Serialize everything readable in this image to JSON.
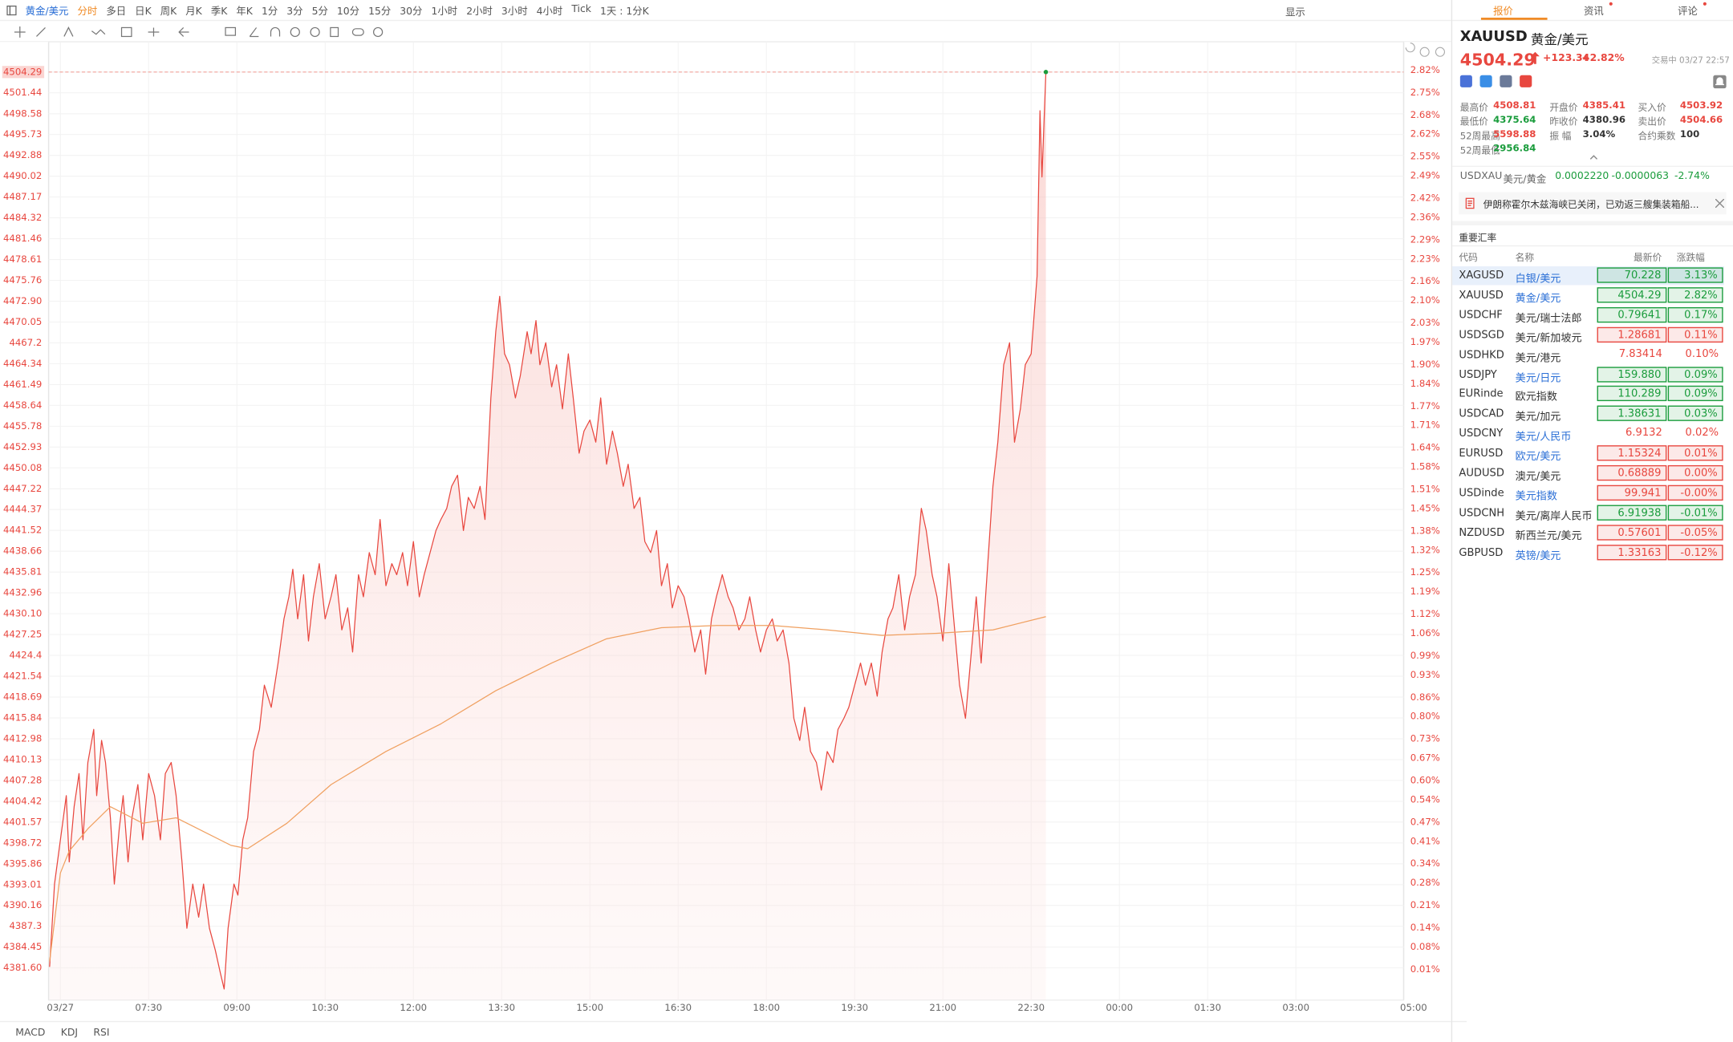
{
  "toolbar": {
    "symbol": "黄金/美元",
    "periods": [
      "分时",
      "多日",
      "日K",
      "周K",
      "月K",
      "季K",
      "年K",
      "1分",
      "3分",
      "5分",
      "10分",
      "15分",
      "30分",
      "1小时",
      "2小时",
      "3小时",
      "4小时",
      "Tick",
      "1天 : 1分K"
    ],
    "display": "显示"
  },
  "indicators": [
    "MACD",
    "KDJ",
    "RSI"
  ],
  "chart_data": {
    "type": "line",
    "x": [
      -11,
      -6,
      0,
      6,
      9,
      14,
      19,
      23,
      28,
      34,
      37,
      42,
      46,
      51,
      55,
      60,
      64,
      69,
      73,
      79,
      84,
      90,
      96,
      102,
      107,
      113,
      118,
      124,
      129,
      135,
      141,
      146,
      152,
      158,
      163,
      167,
      171,
      177,
      181,
      186,
      191,
      197,
      203,
      208,
      215,
      222,
      228,
      233,
      237,
      242,
      248,
      253,
      258,
      264,
      270,
      276,
      281,
      287,
      293,
      298,
      304,
      309,
      315,
      321,
      326,
      332,
      338,
      343,
      349,
      354,
      360,
      366,
      371,
      377,
      383,
      388,
      394,
      399,
      405,
      411,
      416,
      422,
      428,
      433,
      439,
      444,
      448,
      453,
      458,
      464,
      469,
      476,
      480,
      485,
      489,
      495,
      501,
      506,
      512,
      518,
      523,
      529,
      534,
      540,
      546,
      551,
      557,
      563,
      568,
      574,
      579,
      585,
      591,
      596,
      602,
      608,
      613,
      619,
      624,
      630,
      636,
      641,
      647,
      653,
      658,
      664,
      669,
      675,
      681,
      686,
      692,
      698,
      703,
      709,
      714,
      720,
      726,
      731,
      737,
      743,
      748,
      754,
      759,
      765,
      771,
      776,
      782,
      788,
      793,
      799,
      804,
      810,
      816,
      821,
      827,
      833,
      838,
      844,
      849,
      855,
      861,
      866,
      872,
      878,
      883,
      889,
      894,
      900,
      906,
      911,
      917,
      923,
      928,
      934,
      939,
      945,
      951,
      956,
      962,
      968,
      973,
      979,
      984,
      990,
      996,
      999,
      1001,
      1005
    ],
    "series": [
      {
        "color": "#e8473f",
        "values": [
          4381.74,
          4393.08,
          4399.14,
          4405.19,
          4396.11,
          4403.68,
          4408.22,
          4399.14,
          4409.73,
          4414.27,
          4405.19,
          4412.76,
          4409.73,
          4402.16,
          4393.08,
          4400.65,
          4405.19,
          4396.11,
          4402.16,
          4406.7,
          4399.14,
          4408.22,
          4405.19,
          4399.14,
          4408.22,
          4409.73,
          4405.19,
          4396.11,
          4387.03,
          4393.08,
          4388.55,
          4393.08,
          4387.03,
          4384.01,
          4380.98,
          4378.71,
          4387.03,
          4393.08,
          4391.57,
          4399.14,
          4402.16,
          4411.24,
          4414.27,
          4420.32,
          4417.29,
          4423.35,
          4429.4,
          4432.42,
          4436.2,
          4429.4,
          4435.45,
          4426.37,
          4432.42,
          4436.96,
          4429.4,
          4432.42,
          4435.45,
          4427.89,
          4430.91,
          4424.86,
          4435.45,
          4432.42,
          4438.48,
          4435.45,
          4443.01,
          4433.94,
          4436.96,
          4435.45,
          4438.48,
          4433.94,
          4439.99,
          4432.42,
          4435.45,
          4438.48,
          4441.5,
          4443.01,
          4444.53,
          4447.55,
          4449.07,
          4441.5,
          4446.04,
          4444.53,
          4447.55,
          4443.01,
          4459.66,
          4468.73,
          4473.58,
          4465.7,
          4464.2,
          4459.66,
          4462.68,
          4468.73,
          4465.7,
          4470.25,
          4464.2,
          4467.22,
          4461.17,
          4464.2,
          4458.15,
          4465.7,
          4459.66,
          4452.09,
          4455.12,
          4456.63,
          4453.6,
          4459.66,
          4450.58,
          4455.12,
          4452.09,
          4447.55,
          4450.58,
          4444.53,
          4446.04,
          4439.99,
          4438.48,
          4441.5,
          4433.94,
          4436.96,
          4430.91,
          4433.94,
          4432.42,
          4429.4,
          4424.86,
          4427.89,
          4421.83,
          4429.4,
          4432.42,
          4435.45,
          4432.42,
          4430.91,
          4427.89,
          4429.4,
          4432.42,
          4427.89,
          4424.86,
          4427.89,
          4429.4,
          4426.37,
          4427.89,
          4423.35,
          4415.78,
          4412.76,
          4417.29,
          4411.24,
          4409.73,
          4405.95,
          4411.24,
          4409.73,
          4414.27,
          4415.78,
          4417.29,
          4420.32,
          4423.35,
          4420.32,
          4423.35,
          4418.81,
          4424.86,
          4429.4,
          4430.91,
          4435.45,
          4427.89,
          4432.42,
          4435.45,
          4444.53,
          4441.5,
          4435.45,
          4432.42,
          4426.37,
          4436.96,
          4429.4,
          4420.32,
          4415.78,
          4423.35,
          4432.42,
          4423.35,
          4435.45,
          4447.55,
          4453.6,
          4464.2,
          4467.22,
          4453.6,
          4458.15,
          4464.2,
          4465.7,
          4476.3,
          4498.99,
          4489.92,
          4504.29
        ]
      },
      {
        "color": "#f0a060",
        "x": [
          -11,
          0,
          9,
          28,
          51,
          84,
          118,
          174,
          191,
          231,
          276,
          332,
          388,
          444,
          501,
          557,
          613,
          669,
          726,
          782,
          838,
          894,
          951,
          1005
        ],
        "values": [
          4382.49,
          4394.6,
          4397.62,
          4400.65,
          4403.68,
          4401.41,
          4402.16,
          4398.38,
          4397.93,
          4401.41,
          4406.7,
          4411.24,
          4415.02,
          4419.56,
          4423.35,
          4426.67,
          4428.19,
          4428.49,
          4428.49,
          4427.89,
          4427.13,
          4427.43,
          4427.89,
          4429.7
        ]
      }
    ],
    "xlim": [
      -12,
      1380
    ],
    "xticks": [
      {
        "value": 0,
        "label": "03/27"
      },
      {
        "value": 90,
        "label": "07:30"
      },
      {
        "value": 180,
        "label": "09:00"
      },
      {
        "value": 270,
        "label": "10:30"
      },
      {
        "value": 360,
        "label": "12:00"
      },
      {
        "value": 450,
        "label": "13:30"
      },
      {
        "value": 540,
        "label": "15:00"
      },
      {
        "value": 630,
        "label": "16:30"
      },
      {
        "value": 720,
        "label": "18:00"
      },
      {
        "value": 810,
        "label": "19:30"
      },
      {
        "value": 900,
        "label": "21:00"
      },
      {
        "value": 990,
        "label": "22:30"
      },
      {
        "value": 1080,
        "label": "00:00"
      },
      {
        "value": 1170,
        "label": "01:30"
      },
      {
        "value": 1260,
        "label": "03:00"
      },
      {
        "value": 1380,
        "label": "05:00"
      }
    ],
    "ylim": [
      4377.2,
      4508.1
    ],
    "yticks": [
      4504.29,
      4501.44,
      4498.58,
      4495.73,
      4492.88,
      4490.02,
      4487.17,
      4484.32,
      4481.46,
      4478.61,
      4475.76,
      {
        "value": 4472.9,
        "label": "4472.90"
      },
      4470.05,
      4467.2,
      4464.34,
      4461.49,
      4458.64,
      4455.78,
      4452.93,
      4450.08,
      4447.22,
      4444.37,
      4441.52,
      4438.66,
      4435.81,
      4432.96,
      {
        "value": 4430.1,
        "label": "4430.10"
      },
      4427.25,
      4424.4,
      4421.54,
      4418.69,
      4415.84,
      4412.98,
      4410.13,
      4407.28,
      4404.42,
      4401.57,
      4398.72,
      4395.86,
      4393.01,
      4390.16,
      4387.3,
      4384.45,
      {
        "value": 4381.6,
        "label": "4381.60"
      }
    ],
    "y2lim": [
      -0.086,
      2.901
    ],
    "y2ticks": [
      {
        "value": 2.82,
        "label": "2.82%"
      },
      {
        "value": 2.75,
        "label": "2.75%"
      },
      {
        "value": 2.68,
        "label": "2.68%"
      },
      {
        "value": 2.62,
        "label": "2.62%"
      },
      {
        "value": 2.55,
        "label": "2.55%"
      },
      {
        "value": 2.49,
        "label": "2.49%"
      },
      {
        "value": 2.42,
        "label": "2.42%"
      },
      {
        "value": 2.36,
        "label": "2.36%"
      },
      {
        "value": 2.29,
        "label": "2.29%"
      },
      {
        "value": 2.23,
        "label": "2.23%"
      },
      {
        "value": 2.16,
        "label": "2.16%"
      },
      {
        "value": 2.1,
        "label": "2.10%"
      },
      {
        "value": 2.03,
        "label": "2.03%"
      },
      {
        "value": 1.97,
        "label": "1.97%"
      },
      {
        "value": 1.9,
        "label": "1.90%"
      },
      {
        "value": 1.84,
        "label": "1.84%"
      },
      {
        "value": 1.77,
        "label": "1.77%"
      },
      {
        "value": 1.71,
        "label": "1.71%"
      },
      {
        "value": 1.64,
        "label": "1.64%"
      },
      {
        "value": 1.58,
        "label": "1.58%"
      },
      {
        "value": 1.51,
        "label": "1.51%"
      },
      {
        "value": 1.45,
        "label": "1.45%"
      },
      {
        "value": 1.38,
        "label": "1.38%"
      },
      {
        "value": 1.32,
        "label": "1.32%"
      },
      {
        "value": 1.25,
        "label": "1.25%"
      },
      {
        "value": 1.19,
        "label": "1.19%"
      },
      {
        "value": 1.12,
        "label": "1.12%"
      },
      {
        "value": 1.06,
        "label": "1.06%"
      },
      {
        "value": 0.99,
        "label": "0.99%"
      },
      {
        "value": 0.93,
        "label": "0.93%"
      },
      {
        "value": 0.86,
        "label": "0.86%"
      },
      {
        "value": 0.8,
        "label": "0.80%"
      },
      {
        "value": 0.73,
        "label": "0.73%"
      },
      {
        "value": 0.67,
        "label": "0.67%"
      },
      {
        "value": 0.6,
        "label": "0.60%"
      },
      {
        "value": 0.54,
        "label": "0.54%"
      },
      {
        "value": 0.47,
        "label": "0.47%"
      },
      {
        "value": 0.41,
        "label": "0.41%"
      },
      {
        "value": 0.34,
        "label": "0.34%"
      },
      {
        "value": 0.28,
        "label": "0.28%"
      },
      {
        "value": 0.21,
        "label": "0.21%"
      },
      {
        "value": 0.14,
        "label": "0.14%"
      },
      {
        "value": 0.08,
        "label": "0.08%"
      },
      {
        "value": 0.01,
        "label": "0.01%"
      }
    ],
    "grid": true
  },
  "panel": {
    "tabs": [
      "报价",
      "资讯",
      "评论"
    ],
    "code": "XAUUSD",
    "name": "黄金/美元",
    "price": "4504.29",
    "change": "+123.34",
    "change_pct": "+2.82%",
    "status": "交易中 03/27 22:57",
    "stats": [
      {
        "label": "最高价",
        "value": "4508.81",
        "color": "#e8473f"
      },
      {
        "label": "开盘价",
        "value": "4385.41",
        "color": "#e8473f"
      },
      {
        "label": "买入价",
        "value": "4503.92",
        "color": "#e8473f"
      },
      {
        "label": "最低价",
        "value": "4375.64",
        "color": "#1a9c3c"
      },
      {
        "label": "昨收价",
        "value": "4380.96",
        "color": "#333333"
      },
      {
        "label": "卖出价",
        "value": "4504.66",
        "color": "#e8473f"
      },
      {
        "label": "52周最高",
        "value": "5598.88",
        "color": "#e8473f"
      },
      {
        "label": "振 幅",
        "value": "3.04%",
        "color": "#333333"
      },
      {
        "label": "合约乘数",
        "value": "100",
        "color": "#333333"
      },
      {
        "label": "52周最低",
        "value": "2956.84",
        "color": "#1a9c3c"
      }
    ],
    "related": {
      "code": "USDXAU",
      "name": "美元/黄金",
      "price": "0.0002220",
      "change": "-0.0000063",
      "change_pct": "-2.74%"
    },
    "news": "伊朗称霍尔木兹海峡已关闭，已劝返三艘集装箱船...",
    "section": "重要汇率",
    "table": {
      "headers": [
        "代码",
        "名称",
        "最新价",
        "涨跌幅"
      ],
      "rows": [
        {
          "code": "XAGUSD",
          "name": "白银/美元",
          "price": "70.228",
          "change": "3.13%",
          "color": "#1a9c3c",
          "boxed": true,
          "link": true
        },
        {
          "code": "XAUUSD",
          "name": "黄金/美元",
          "price": "4504.29",
          "change": "2.82%",
          "color": "#1a9c3c",
          "boxed": true,
          "link": true
        },
        {
          "code": "USDCHF",
          "name": "美元/瑞士法郎",
          "price": "0.79641",
          "change": "0.17%",
          "color": "#1a9c3c",
          "boxed": true,
          "link": false
        },
        {
          "code": "USDSGD",
          "name": "美元/新加坡元",
          "price": "1.28681",
          "change": "0.11%",
          "color": "#e8473f",
          "boxed": true,
          "link": false
        },
        {
          "code": "USDHKD",
          "name": "美元/港元",
          "price": "7.83414",
          "change": "0.10%",
          "color": "#e8473f",
          "boxed": false,
          "link": false
        },
        {
          "code": "USDJPY",
          "name": "美元/日元",
          "price": "159.880",
          "change": "0.09%",
          "color": "#1a9c3c",
          "boxed": true,
          "link": true
        },
        {
          "code": "EURinde",
          "name": "欧元指数",
          "price": "110.289",
          "change": "0.09%",
          "color": "#1a9c3c",
          "boxed": true,
          "link": false
        },
        {
          "code": "USDCAD",
          "name": "美元/加元",
          "price": "1.38631",
          "change": "0.03%",
          "color": "#1a9c3c",
          "boxed": true,
          "link": false
        },
        {
          "code": "USDCNY",
          "name": "美元/人民币",
          "price": "6.9132",
          "change": "0.02%",
          "color": "#e8473f",
          "boxed": false,
          "link": true
        },
        {
          "code": "EURUSD",
          "name": "欧元/美元",
          "price": "1.15324",
          "change": "0.01%",
          "color": "#e8473f",
          "boxed": true,
          "link": true
        },
        {
          "code": "AUDUSD",
          "name": "澳元/美元",
          "price": "0.68889",
          "change": "0.00%",
          "color": "#e8473f",
          "boxed": true,
          "link": false
        },
        {
          "code": "USDinde",
          "name": "美元指数",
          "price": "99.941",
          "change": "-0.00%",
          "color": "#e8473f",
          "boxed": true,
          "link": true
        },
        {
          "code": "USDCNH",
          "name": "美元/离岸人民币",
          "price": "6.91938",
          "change": "-0.01%",
          "color": "#1a9c3c",
          "boxed": true,
          "link": false
        },
        {
          "code": "NZDUSD",
          "name": "新西兰元/美元",
          "price": "0.57601",
          "change": "-0.05%",
          "color": "#e8473f",
          "boxed": true,
          "link": false
        },
        {
          "code": "GBPUSD",
          "name": "英镑/美元",
          "price": "1.33163",
          "change": "-0.12%",
          "color": "#e8473f",
          "boxed": true,
          "link": true
        }
      ]
    }
  }
}
